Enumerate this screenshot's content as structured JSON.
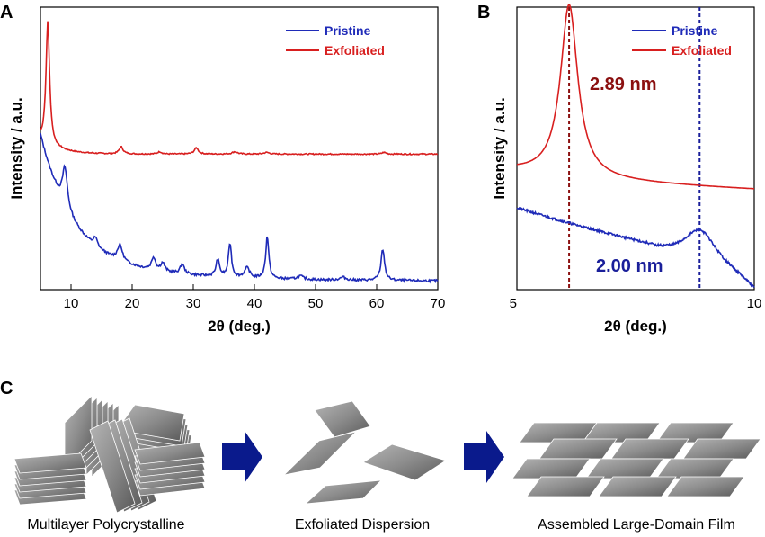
{
  "colors": {
    "pristine": "#1f2bb8",
    "exfoliated": "#d81f1f",
    "annot_red": "#8b1010",
    "annot_blue": "#1a1f9a",
    "arrow": "#0a1a8c",
    "sheet": "#8a8a8a"
  },
  "panel_c": {
    "letter": "C",
    "captions": [
      "Multilayer Polycrystalline",
      "Exfoliated Dispersion",
      "Assembled Large-Domain Film"
    ],
    "arrow_icon": "right-arrow-icon",
    "sheet_icon": "nanosheet-icon"
  },
  "chart_data": [
    {
      "panel": "A",
      "type": "line",
      "xlabel": "2θ (deg.)",
      "ylabel": "Intensity / a.u.",
      "xlim": [
        5,
        70
      ],
      "xticks": [
        10,
        20,
        30,
        40,
        50,
        60,
        70
      ],
      "ylim": [
        0,
        1
      ],
      "legend": [
        "Pristine",
        "Exfoliated"
      ],
      "legend_position": "top-right",
      "series": [
        {
          "name": "Exfoliated",
          "baseline": 0.48,
          "peaks": [
            {
              "x": 6.2,
              "height": 0.44,
              "width": 0.35
            },
            {
              "x": 18.2,
              "height": 0.025,
              "width": 0.4
            },
            {
              "x": 24.5,
              "height": 0.008,
              "width": 0.4
            },
            {
              "x": 30.5,
              "height": 0.022,
              "width": 0.4
            },
            {
              "x": 36.8,
              "height": 0.008,
              "width": 0.5
            },
            {
              "x": 42.0,
              "height": 0.006,
              "width": 0.5
            },
            {
              "x": 61.2,
              "height": 0.006,
              "width": 0.4
            }
          ]
        },
        {
          "name": "Pristine",
          "baseline": 0.03,
          "peaks": [
            {
              "x": 9.0,
              "height": 0.14,
              "width": 0.5
            },
            {
              "x": 14.0,
              "height": 0.03,
              "width": 0.4
            },
            {
              "x": 18.0,
              "height": 0.055,
              "width": 0.5
            },
            {
              "x": 23.5,
              "height": 0.045,
              "width": 0.4
            },
            {
              "x": 25.0,
              "height": 0.03,
              "width": 0.4
            },
            {
              "x": 28.2,
              "height": 0.035,
              "width": 0.4
            },
            {
              "x": 34.0,
              "height": 0.06,
              "width": 0.35
            },
            {
              "x": 36.0,
              "height": 0.12,
              "width": 0.3
            },
            {
              "x": 38.8,
              "height": 0.035,
              "width": 0.5
            },
            {
              "x": 42.1,
              "height": 0.15,
              "width": 0.3
            },
            {
              "x": 47.5,
              "height": 0.012,
              "width": 0.6
            },
            {
              "x": 54.5,
              "height": 0.01,
              "width": 0.6
            },
            {
              "x": 61.0,
              "height": 0.11,
              "width": 0.35
            }
          ]
        }
      ]
    },
    {
      "panel": "B",
      "type": "line",
      "xlabel": "2θ (deg.)",
      "ylabel": "Intensity / a.u.",
      "xlim": [
        5,
        10
      ],
      "xticks": [
        5,
        10
      ],
      "ylim": [
        0,
        1
      ],
      "legend": [
        "Pristine",
        "Exfoliated"
      ],
      "legend_position": "top-right",
      "reference_lines": [
        {
          "x": 6.1,
          "series": "Exfoliated",
          "label": "2.89 nm"
        },
        {
          "x": 8.85,
          "series": "Pristine",
          "label": "2.00 nm"
        }
      ],
      "series": [
        {
          "name": "Exfoliated",
          "peak_x": 6.1,
          "peak_y": 0.98,
          "baseline_y": 0.35
        },
        {
          "name": "Pristine",
          "peak_x": 8.85,
          "peak_y": 0.21,
          "baseline_y": 0.17
        }
      ]
    }
  ]
}
